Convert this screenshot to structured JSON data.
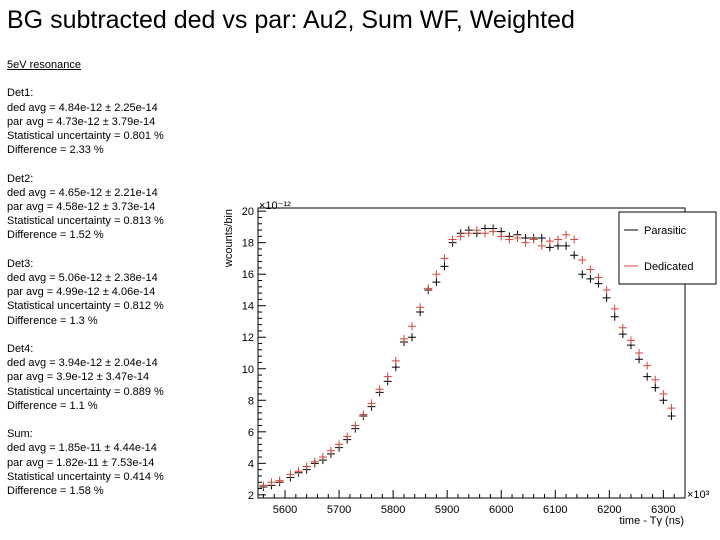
{
  "title": "BG subtracted ded vs par: Au2, Sum WF, Weighted",
  "stats": {
    "heading": "5eV resonance",
    "groups": [
      {
        "name": "Det1:",
        "ded": "ded avg = 4.84e-12 ± 2.25e-14",
        "par": "par avg = 4.73e-12 ± 3.79e-14",
        "unc": "Statistical uncertainty = 0.801 %",
        "diff": "Difference = 2.33 %"
      },
      {
        "name": "Det2:",
        "ded": "ded avg = 4.65e-12 ± 2.21e-14",
        "par": "par avg = 4.58e-12 ± 3.73e-14",
        "unc": "Statistical uncertainty = 0.813 %",
        "diff": "Difference = 1.52 %"
      },
      {
        "name": "Det3:",
        "ded": "ded avg = 5.06e-12 ± 2.38e-14",
        "par": "par avg = 4.99e-12 ± 4.06e-14",
        "unc": "Statistical uncertainty = 0.812 %",
        "diff": "Difference = 1.3 %"
      },
      {
        "name": "Det4:",
        "ded": "ded avg = 3.94e-12 ± 2.04e-14",
        "par": "par avg = 3.9e-12 ± 3.47e-14",
        "unc": "Statistical uncertainty = 0.889 %",
        "diff": "Difference = 1.1 %"
      },
      {
        "name": "Sum:",
        "ded": "ded avg = 1.85e-11 ± 4.44e-14",
        "par": "par avg = 1.82e-11 ± 7.53e-14",
        "unc": "Statistical uncertainty = 0.414 %",
        "diff": "Difference = 1.58 %"
      }
    ]
  },
  "chart_data": {
    "type": "scatter",
    "xlabel": "time - Tγ (ns)",
    "ylabel": "wcounts/bin",
    "x_multiplier": "×10³",
    "y_multiplier": "×10⁻¹²",
    "xlim": [
      5550,
      6340
    ],
    "ylim": [
      1.8,
      20.2
    ],
    "x_ticks": [
      5600,
      5700,
      5800,
      5900,
      6000,
      6100,
      6200,
      6300
    ],
    "y_ticks": [
      2,
      4,
      6,
      8,
      10,
      12,
      14,
      16,
      18,
      20
    ],
    "legend": [
      "Parasitic",
      "Dedicated"
    ],
    "legend_position": "top-right",
    "colors": {
      "parasitic": "#000000",
      "dedicated": "#d9463a",
      "axis": "#000000"
    },
    "series": [
      {
        "name": "Parasitic",
        "x": [
          5560,
          5575,
          5590,
          5610,
          5625,
          5640,
          5655,
          5670,
          5685,
          5700,
          5715,
          5730,
          5745,
          5760,
          5775,
          5790,
          5805,
          5820,
          5835,
          5850,
          5865,
          5880,
          5895,
          5910,
          5925,
          5940,
          5955,
          5970,
          5985,
          6000,
          6015,
          6030,
          6045,
          6060,
          6075,
          6090,
          6105,
          6120,
          6135,
          6150,
          6165,
          6180,
          6195,
          6210,
          6225,
          6240,
          6255,
          6270,
          6285,
          6300,
          6315
        ],
        "y": [
          2.5,
          2.6,
          2.8,
          3.1,
          3.4,
          3.6,
          4.0,
          4.2,
          4.6,
          5.0,
          5.5,
          6.2,
          7.0,
          7.6,
          8.5,
          9.2,
          10.1,
          11.7,
          12.0,
          13.6,
          15.0,
          15.5,
          16.5,
          18.0,
          18.6,
          18.8,
          18.6,
          18.9,
          18.9,
          18.7,
          18.4,
          18.5,
          18.3,
          18.3,
          18.3,
          17.7,
          17.8,
          17.8,
          17.2,
          16.0,
          15.7,
          15.4,
          14.5,
          13.3,
          12.2,
          11.5,
          10.6,
          9.5,
          8.8,
          8.0,
          7.0
        ]
      },
      {
        "name": "Dedicated",
        "x": [
          5560,
          5575,
          5590,
          5610,
          5625,
          5640,
          5655,
          5670,
          5685,
          5700,
          5715,
          5730,
          5745,
          5760,
          5775,
          5790,
          5805,
          5820,
          5835,
          5850,
          5865,
          5880,
          5895,
          5910,
          5925,
          5940,
          5955,
          5970,
          5985,
          6000,
          6015,
          6030,
          6045,
          6060,
          6075,
          6090,
          6105,
          6120,
          6135,
          6150,
          6165,
          6180,
          6195,
          6210,
          6225,
          6240,
          6255,
          6270,
          6285,
          6300,
          6315
        ],
        "y": [
          2.6,
          2.8,
          2.9,
          3.3,
          3.5,
          3.8,
          4.1,
          4.4,
          4.8,
          5.2,
          5.7,
          6.4,
          7.1,
          7.8,
          8.7,
          9.5,
          10.5,
          11.9,
          12.7,
          13.9,
          15.1,
          16.0,
          17.0,
          18.2,
          18.4,
          18.6,
          18.8,
          18.6,
          18.7,
          18.4,
          18.2,
          18.3,
          18.0,
          18.2,
          17.8,
          18.1,
          18.2,
          18.5,
          18.2,
          16.9,
          16.3,
          15.8,
          15.0,
          13.8,
          12.6,
          11.8,
          11.0,
          10.2,
          9.3,
          8.4,
          7.5
        ]
      }
    ]
  }
}
